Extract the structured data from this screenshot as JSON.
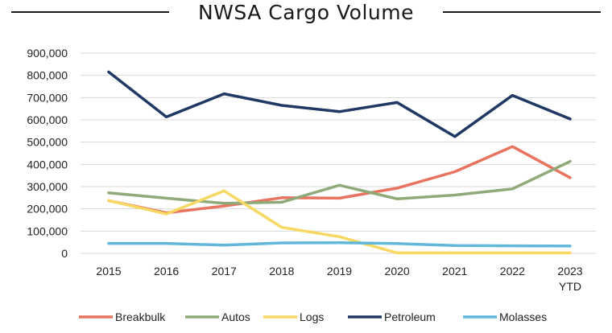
{
  "chart_data": {
    "type": "line",
    "title": "NWSA Cargo Volume",
    "xlabel": "",
    "ylabel": "",
    "categories": [
      "2015",
      "2016",
      "2017",
      "2018",
      "2019",
      "2020",
      "2021",
      "2022",
      "2023"
    ],
    "category_sublabels": [
      "",
      "",
      "",
      "",
      "",
      "",
      "",
      "",
      "YTD"
    ],
    "ylim": [
      0,
      900000
    ],
    "yticks": [
      0,
      100000,
      200000,
      300000,
      400000,
      500000,
      600000,
      700000,
      800000,
      900000
    ],
    "ytick_labels": [
      "0",
      "100,000",
      "200,000",
      "300,000",
      "400,000",
      "500,000",
      "600,000",
      "700,000",
      "800,000",
      "900,000"
    ],
    "grid": true,
    "legend_position": "bottom",
    "series": [
      {
        "name": "Breakbulk",
        "color": "#E8735F",
        "values": [
          237000,
          182000,
          213000,
          250000,
          248000,
          293000,
          367000,
          480000,
          340000
        ]
      },
      {
        "name": "Autos",
        "color": "#8FAA78",
        "values": [
          272000,
          248000,
          225000,
          230000,
          306000,
          245000,
          262000,
          290000,
          413000
        ]
      },
      {
        "name": "Logs",
        "color": "#F7D862",
        "values": [
          237000,
          177000,
          281000,
          117000,
          75000,
          2000,
          2000,
          2000,
          2000
        ]
      },
      {
        "name": "Petroleum",
        "color": "#1F3864",
        "values": [
          815000,
          613000,
          717000,
          665000,
          637000,
          678000,
          525000,
          710000,
          604000
        ]
      },
      {
        "name": "Molasses",
        "color": "#62B8DB",
        "values": [
          45000,
          45000,
          37000,
          47000,
          48000,
          44000,
          35000,
          34000,
          33000
        ]
      }
    ]
  }
}
